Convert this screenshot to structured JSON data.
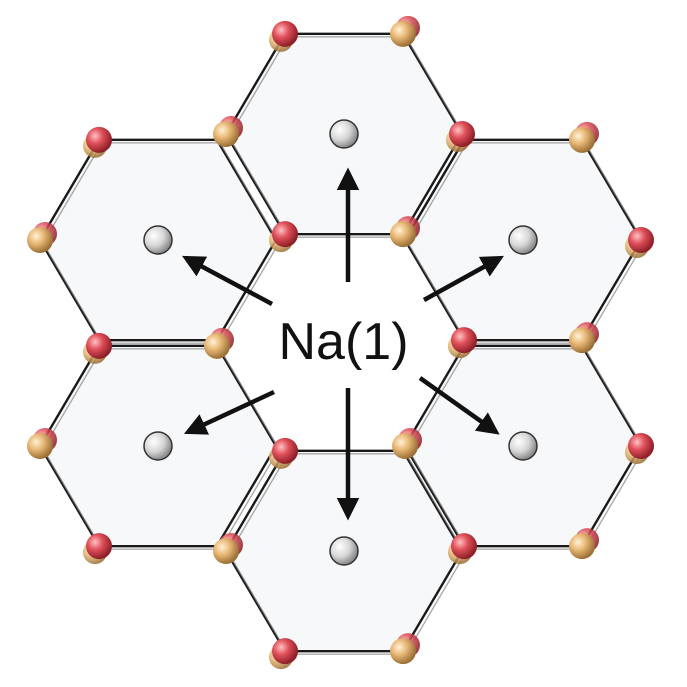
{
  "diagram": {
    "center_label": "Na(1)",
    "colors": {
      "atom_red": "#e0505a",
      "atom_tan": "#e9b978",
      "atom_grey": "#d7d7d7",
      "bond": "#1a1a1a",
      "arrow": "#111111",
      "hexagon_fill": "#eef2f6"
    },
    "structure": {
      "description_icon": "honeycomb-lattice-icon",
      "hexagon_count": 6,
      "arrow_count": 6
    }
  }
}
